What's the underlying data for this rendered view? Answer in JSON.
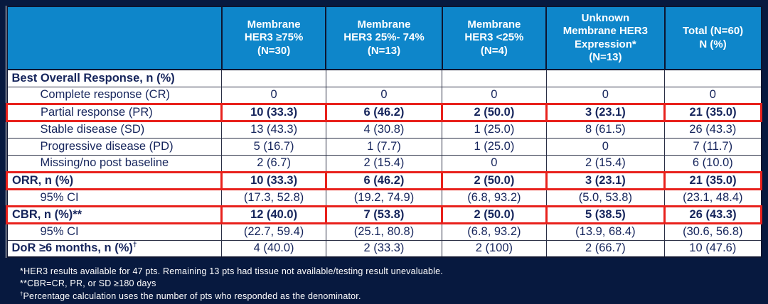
{
  "colors": {
    "background": "#07193f",
    "header_blue": "#0e86ca",
    "body_text_navy": "#16255c",
    "highlight_red": "#e8211c",
    "cell_bg": "#ffffff"
  },
  "table": {
    "header": {
      "columns": [
        "",
        "Membrane\nHER3 ≥75%\n(N=30)",
        "Membrane\nHER3 25%- 74%\n(N=13)",
        "Membrane\nHER3 <25%\n(N=4)",
        "Unknown\nMembrane HER3\nExpression*\n(N=13)",
        "Total (N=60)\nN (%)"
      ]
    },
    "rows": [
      {
        "label": "Best Overall Response, n (%)",
        "sup": "",
        "values": [
          "",
          "",
          "",
          "",
          ""
        ],
        "bold": true,
        "indent": false,
        "highlight": false
      },
      {
        "label": "Complete response (CR)",
        "sup": "",
        "values": [
          "0",
          "0",
          "0",
          "0",
          "0"
        ],
        "bold": false,
        "indent": true,
        "highlight": false
      },
      {
        "label": "Partial response (PR)",
        "sup": "",
        "values": [
          "10 (33.3)",
          "6 (46.2)",
          "2 (50.0)",
          "3 (23.1)",
          "21 (35.0)"
        ],
        "bold": false,
        "indent": true,
        "highlight": true
      },
      {
        "label": "Stable disease (SD)",
        "sup": "",
        "values": [
          "13 (43.3)",
          "4 (30.8)",
          "1 (25.0)",
          "8 (61.5)",
          "26 (43.3)"
        ],
        "bold": false,
        "indent": true,
        "highlight": false
      },
      {
        "label": "Progressive disease (PD)",
        "sup": "",
        "values": [
          "5 (16.7)",
          "1 (7.7)",
          "1 (25.0)",
          "0",
          "7 (11.7)"
        ],
        "bold": false,
        "indent": true,
        "highlight": false
      },
      {
        "label": "Missing/no post baseline",
        "sup": "",
        "values": [
          "2 (6.7)",
          "2 (15.4)",
          "0",
          "2 (15.4)",
          "6 (10.0)"
        ],
        "bold": false,
        "indent": true,
        "highlight": false
      },
      {
        "label": "ORR, n (%)",
        "sup": "",
        "values": [
          "10 (33.3)",
          "6 (46.2)",
          "2 (50.0)",
          "3 (23.1)",
          "21 (35.0)"
        ],
        "bold": true,
        "indent": false,
        "highlight": true
      },
      {
        "label": "95% CI",
        "sup": "",
        "values": [
          "(17.3, 52.8)",
          "(19.2, 74.9)",
          "(6.8, 93.2)",
          "(5.0, 53.8)",
          "(23.1, 48.4)"
        ],
        "bold": false,
        "indent": true,
        "highlight": false
      },
      {
        "label": "CBR, n (%)**",
        "sup": "",
        "values": [
          "12 (40.0)",
          "7 (53.8)",
          "2 (50.0)",
          "5 (38.5)",
          "26 (43.3)"
        ],
        "bold": true,
        "indent": false,
        "highlight": true
      },
      {
        "label": "95% CI",
        "sup": "",
        "values": [
          "(22.7, 59.4)",
          "(25.1, 80.8)",
          "(6.8, 93.2)",
          "(13.9, 68.4)",
          "(30.6, 56.8)"
        ],
        "bold": false,
        "indent": true,
        "highlight": false
      },
      {
        "label": "DoR ≥6 months, n (%)",
        "sup": "†",
        "values": [
          "4 (40.0)",
          "2 (33.3)",
          "2 (100)",
          "2 (66.7)",
          "10 (47.6)"
        ],
        "bold": true,
        "indent": false,
        "highlight": false
      }
    ]
  },
  "footnotes": [
    {
      "marker": "*",
      "sup": false,
      "text": "HER3 results available for 47 pts. Remaining 13 pts had tissue not available/testing result unevaluable."
    },
    {
      "marker": "**",
      "sup": false,
      "text": "CBR=CR, PR, or SD ≥180 days"
    },
    {
      "marker": "†",
      "sup": true,
      "text": "Percentage calculation uses the number of pts who responded as the denominator."
    }
  ]
}
